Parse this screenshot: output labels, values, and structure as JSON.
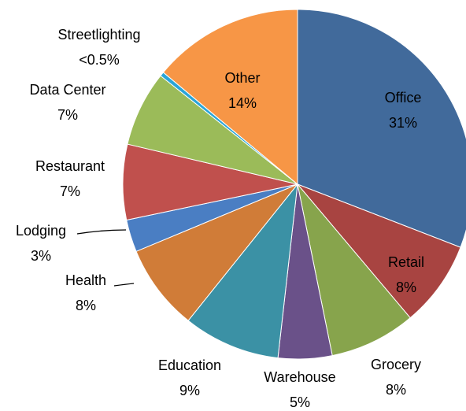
{
  "chart_data": {
    "type": "pie",
    "categories": [
      "Office",
      "Retail",
      "Grocery",
      "Warehouse",
      "Education",
      "Health",
      "Lodging",
      "Restaurant",
      "Data Center",
      "Streetlighting",
      "Other"
    ],
    "values": [
      31,
      8,
      8,
      5,
      9,
      8,
      3,
      7,
      7,
      0.4,
      14
    ],
    "value_labels": [
      "31%",
      "8%",
      "8%",
      "5%",
      "9%",
      "8%",
      "3%",
      "7%",
      "7%",
      "<0.5%",
      "14%"
    ],
    "colors": [
      "#416a9b",
      "#a84441",
      "#87a44c",
      "#6a5189",
      "#3b91a5",
      "#d07c38",
      "#4a7ec3",
      "#c0504d",
      "#9bbb59",
      "#2aa5d8",
      "#f79646"
    ]
  }
}
